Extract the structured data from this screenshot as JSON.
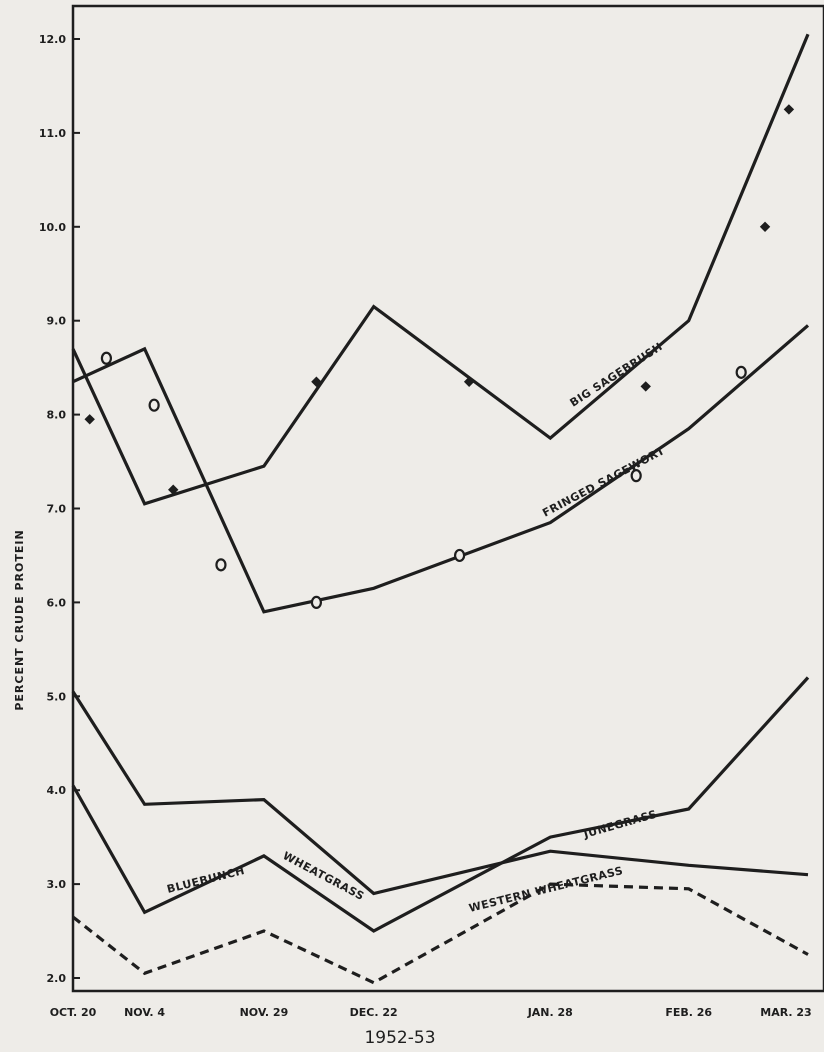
{
  "chart_data": {
    "type": "line",
    "title": "",
    "xlabel": "1952-53",
    "ylabel": "PERCENT CRUDE PROTEIN",
    "categories": [
      "OCT. 20",
      "NOV. 4",
      "NOV. 29",
      "DEC. 22",
      "JAN. 28",
      "FEB. 26",
      "MAR. 23"
    ],
    "x_days": [
      0,
      15,
      40,
      63,
      100,
      129,
      154
    ],
    "ylim": [
      1.9,
      12.4
    ],
    "yticks": [
      "2.0",
      "3.0",
      "4.0",
      "5.0",
      "6.0",
      "7.0",
      "8.0",
      "9.0",
      "10.0",
      "11.0",
      "12.0"
    ],
    "grid": false,
    "series": [
      {
        "name": "BIG SAGEBRUSH",
        "values": [
          8.7,
          7.05,
          7.45,
          9.15,
          7.75,
          9.0,
          12.05
        ],
        "marker": "diamond",
        "dash": "solid",
        "markers_at": [
          [
            3.5,
            7.95
          ],
          [
            21,
            7.2
          ],
          [
            51,
            8.35
          ],
          [
            83,
            8.35
          ],
          [
            120,
            8.3
          ],
          [
            145,
            10.0
          ],
          [
            150,
            11.25
          ]
        ]
      },
      {
        "name": "FRINGED SAGEWORT",
        "values": [
          8.35,
          8.7,
          5.9,
          6.15,
          6.85,
          7.85,
          8.95
        ],
        "marker": "circle",
        "dash": "solid",
        "markers_at": [
          [
            7,
            8.6
          ],
          [
            17,
            8.1
          ],
          [
            31,
            6.4
          ],
          [
            51,
            6.0
          ],
          [
            81,
            6.5
          ],
          [
            118,
            7.35
          ],
          [
            140,
            8.45
          ]
        ]
      },
      {
        "name": "BLUEBUNCH WHEATGRASS",
        "values": [
          5.05,
          3.85,
          3.9,
          2.9,
          3.35,
          3.2,
          3.1
        ],
        "marker": "none",
        "dash": "solid"
      },
      {
        "name": "JUNEGRASS",
        "values": [
          4.05,
          2.7,
          3.3,
          2.5,
          3.5,
          3.8,
          5.2
        ],
        "marker": "none",
        "dash": "solid"
      },
      {
        "name": "WESTERN WHEATGRASS",
        "values": [
          2.65,
          2.05,
          2.5,
          1.95,
          3.0,
          2.95,
          2.25
        ],
        "marker": "none",
        "dash": "dashed"
      }
    ],
    "series_labels": {
      "BIG SAGEBRUSH": "BIG SAGEBRUSH",
      "FRINGED SAGEWORT": "FRINGED SAGEWORT",
      "BLUEBUNCH": "BLUEBUNCH",
      "WHEATGRASS_1": "WHEATGRASS",
      "JUNEGRASS": "JUNEGRASS",
      "WESTERN WHEATGRASS": "WESTERN WHEATGRASS"
    },
    "colors": {
      "background": "#eeece8",
      "ink": "#1e1e1e"
    }
  }
}
